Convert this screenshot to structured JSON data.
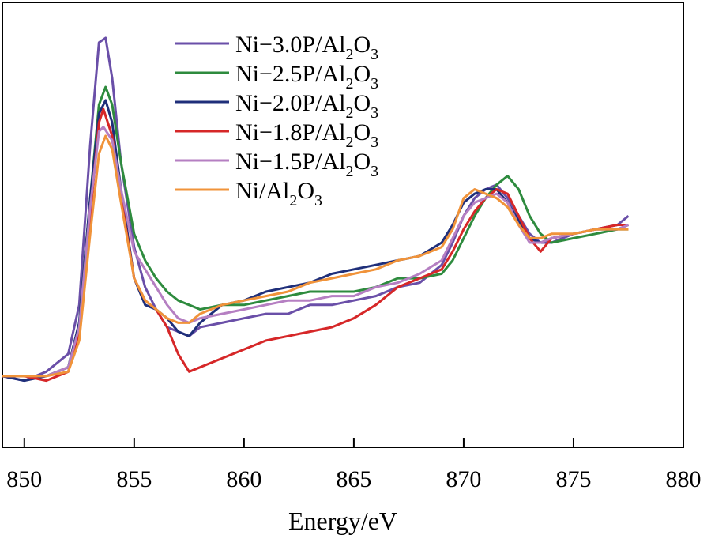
{
  "chart_data": {
    "type": "line",
    "title": "",
    "xlabel": "Energy/eV",
    "ylabel": "",
    "xlim": [
      849,
      880
    ],
    "ylim": [
      0,
      1
    ],
    "xticks": [
      850,
      855,
      860,
      865,
      870,
      875,
      880
    ],
    "xtick_labels": [
      "850",
      "855",
      "860",
      "865",
      "870",
      "875",
      "880"
    ],
    "grid": false,
    "legend_position": "top-center",
    "series": [
      {
        "name": "Ni-3.0P/Al2O3",
        "legend": {
          "prefix": "Ni−3.0P/Al",
          "sub1": "2",
          "mid": "O",
          "sub2": "3"
        },
        "color": "#6a4fa8",
        "points": [
          [
            849,
            0.16
          ],
          [
            850,
            0.15
          ],
          [
            851,
            0.17
          ],
          [
            852,
            0.21
          ],
          [
            852.5,
            0.32
          ],
          [
            853,
            0.68
          ],
          [
            853.4,
            0.91
          ],
          [
            853.7,
            0.92
          ],
          [
            854,
            0.83
          ],
          [
            854.4,
            0.64
          ],
          [
            855,
            0.45
          ],
          [
            855.5,
            0.36
          ],
          [
            856,
            0.31
          ],
          [
            856.5,
            0.27
          ],
          [
            857,
            0.26
          ],
          [
            857.5,
            0.25
          ],
          [
            858,
            0.27
          ],
          [
            859,
            0.28
          ],
          [
            860,
            0.29
          ],
          [
            861,
            0.3
          ],
          [
            862,
            0.3
          ],
          [
            863,
            0.32
          ],
          [
            864,
            0.32
          ],
          [
            865,
            0.33
          ],
          [
            866,
            0.34
          ],
          [
            867,
            0.36
          ],
          [
            868,
            0.37
          ],
          [
            869,
            0.41
          ],
          [
            869.5,
            0.46
          ],
          [
            870,
            0.52
          ],
          [
            870.5,
            0.56
          ],
          [
            871,
            0.58
          ],
          [
            871.5,
            0.59
          ],
          [
            872,
            0.56
          ],
          [
            872.5,
            0.52
          ],
          [
            873,
            0.48
          ],
          [
            873.5,
            0.46
          ],
          [
            874,
            0.46
          ],
          [
            875,
            0.48
          ],
          [
            876,
            0.49
          ],
          [
            877,
            0.5
          ],
          [
            877.5,
            0.52
          ]
        ]
      },
      {
        "name": "Ni-2.5P/Al2O3",
        "legend": {
          "prefix": "Ni−2.5P/Al",
          "sub1": "2",
          "mid": "O",
          "sub2": "3"
        },
        "color": "#2e8b3e",
        "points": [
          [
            849,
            0.16
          ],
          [
            850,
            0.16
          ],
          [
            851,
            0.16
          ],
          [
            852,
            0.18
          ],
          [
            852.5,
            0.28
          ],
          [
            853,
            0.56
          ],
          [
            853.4,
            0.77
          ],
          [
            853.7,
            0.81
          ],
          [
            854,
            0.77
          ],
          [
            854.4,
            0.64
          ],
          [
            855,
            0.48
          ],
          [
            855.5,
            0.42
          ],
          [
            856,
            0.38
          ],
          [
            856.5,
            0.35
          ],
          [
            857,
            0.33
          ],
          [
            857.5,
            0.32
          ],
          [
            858,
            0.31
          ],
          [
            859,
            0.32
          ],
          [
            860,
            0.32
          ],
          [
            861,
            0.33
          ],
          [
            862,
            0.34
          ],
          [
            863,
            0.35
          ],
          [
            864,
            0.35
          ],
          [
            865,
            0.35
          ],
          [
            866,
            0.36
          ],
          [
            867,
            0.38
          ],
          [
            868,
            0.38
          ],
          [
            869,
            0.39
          ],
          [
            869.5,
            0.42
          ],
          [
            870,
            0.47
          ],
          [
            870.5,
            0.52
          ],
          [
            871,
            0.56
          ],
          [
            871.5,
            0.59
          ],
          [
            872,
            0.61
          ],
          [
            872.5,
            0.58
          ],
          [
            873,
            0.52
          ],
          [
            873.5,
            0.48
          ],
          [
            874,
            0.46
          ],
          [
            875,
            0.47
          ],
          [
            876,
            0.48
          ],
          [
            877,
            0.49
          ],
          [
            877.5,
            0.49
          ]
        ]
      },
      {
        "name": "Ni-2.0P/Al2O3",
        "legend": {
          "prefix": "Ni−2.0P/Al",
          "sub1": "2",
          "mid": "O",
          "sub2": "3"
        },
        "color": "#1f2f7a",
        "points": [
          [
            849,
            0.16
          ],
          [
            850,
            0.15
          ],
          [
            851,
            0.16
          ],
          [
            852,
            0.18
          ],
          [
            852.5,
            0.28
          ],
          [
            853,
            0.56
          ],
          [
            853.4,
            0.75
          ],
          [
            853.7,
            0.78
          ],
          [
            854,
            0.73
          ],
          [
            854.4,
            0.58
          ],
          [
            855,
            0.38
          ],
          [
            855.5,
            0.32
          ],
          [
            856,
            0.31
          ],
          [
            856.5,
            0.29
          ],
          [
            857,
            0.26
          ],
          [
            857.5,
            0.25
          ],
          [
            858,
            0.28
          ],
          [
            859,
            0.32
          ],
          [
            860,
            0.33
          ],
          [
            861,
            0.35
          ],
          [
            862,
            0.36
          ],
          [
            863,
            0.37
          ],
          [
            864,
            0.39
          ],
          [
            865,
            0.4
          ],
          [
            866,
            0.41
          ],
          [
            867,
            0.42
          ],
          [
            868,
            0.43
          ],
          [
            869,
            0.46
          ],
          [
            869.5,
            0.5
          ],
          [
            870,
            0.55
          ],
          [
            870.5,
            0.57
          ],
          [
            871,
            0.58
          ],
          [
            871.5,
            0.58
          ],
          [
            872,
            0.55
          ],
          [
            872.5,
            0.51
          ],
          [
            873,
            0.47
          ],
          [
            873.5,
            0.46
          ],
          [
            874,
            0.47
          ],
          [
            875,
            0.48
          ],
          [
            876,
            0.49
          ],
          [
            877,
            0.49
          ],
          [
            877.5,
            0.5
          ]
        ]
      },
      {
        "name": "Ni-1.8P/Al2O3",
        "legend": {
          "prefix": "Ni−1.8P/Al",
          "sub1": "2",
          "mid": "O",
          "sub2": "3"
        },
        "color": "#d62728",
        "points": [
          [
            849,
            0.16
          ],
          [
            850,
            0.16
          ],
          [
            851,
            0.15
          ],
          [
            852,
            0.17
          ],
          [
            852.5,
            0.26
          ],
          [
            853,
            0.52
          ],
          [
            853.4,
            0.73
          ],
          [
            853.6,
            0.76
          ],
          [
            854,
            0.7
          ],
          [
            854.4,
            0.56
          ],
          [
            855,
            0.38
          ],
          [
            855.5,
            0.33
          ],
          [
            856,
            0.31
          ],
          [
            856.5,
            0.27
          ],
          [
            857,
            0.21
          ],
          [
            857.5,
            0.17
          ],
          [
            858,
            0.18
          ],
          [
            859,
            0.2
          ],
          [
            860,
            0.22
          ],
          [
            861,
            0.24
          ],
          [
            862,
            0.25
          ],
          [
            863,
            0.26
          ],
          [
            864,
            0.27
          ],
          [
            865,
            0.29
          ],
          [
            866,
            0.32
          ],
          [
            867,
            0.36
          ],
          [
            868,
            0.38
          ],
          [
            869,
            0.4
          ],
          [
            869.5,
            0.44
          ],
          [
            870,
            0.49
          ],
          [
            870.5,
            0.53
          ],
          [
            871,
            0.56
          ],
          [
            871.5,
            0.58
          ],
          [
            872,
            0.57
          ],
          [
            872.5,
            0.52
          ],
          [
            873,
            0.47
          ],
          [
            873.5,
            0.44
          ],
          [
            874,
            0.47
          ],
          [
            875,
            0.48
          ],
          [
            876,
            0.49
          ],
          [
            877,
            0.5
          ],
          [
            877.5,
            0.5
          ]
        ]
      },
      {
        "name": "Ni-1.5P/Al2O3",
        "legend": {
          "prefix": "Ni−1.5P/Al",
          "sub1": "2",
          "mid": "O",
          "sub2": "3"
        },
        "color": "#b57fc2",
        "points": [
          [
            849,
            0.16
          ],
          [
            850,
            0.16
          ],
          [
            851,
            0.16
          ],
          [
            852,
            0.18
          ],
          [
            852.5,
            0.27
          ],
          [
            853,
            0.54
          ],
          [
            853.4,
            0.71
          ],
          [
            853.6,
            0.72
          ],
          [
            854,
            0.69
          ],
          [
            854.4,
            0.58
          ],
          [
            855,
            0.44
          ],
          [
            855.5,
            0.4
          ],
          [
            856,
            0.36
          ],
          [
            856.5,
            0.32
          ],
          [
            857,
            0.29
          ],
          [
            857.5,
            0.28
          ],
          [
            858,
            0.29
          ],
          [
            859,
            0.3
          ],
          [
            860,
            0.31
          ],
          [
            861,
            0.32
          ],
          [
            862,
            0.33
          ],
          [
            863,
            0.33
          ],
          [
            864,
            0.34
          ],
          [
            865,
            0.34
          ],
          [
            866,
            0.36
          ],
          [
            867,
            0.37
          ],
          [
            868,
            0.39
          ],
          [
            869,
            0.42
          ],
          [
            869.5,
            0.47
          ],
          [
            870,
            0.52
          ],
          [
            870.5,
            0.55
          ],
          [
            871,
            0.56
          ],
          [
            871.5,
            0.57
          ],
          [
            872,
            0.55
          ],
          [
            872.5,
            0.5
          ],
          [
            873,
            0.46
          ],
          [
            873.5,
            0.46
          ],
          [
            874,
            0.47
          ],
          [
            875,
            0.48
          ],
          [
            876,
            0.49
          ],
          [
            877,
            0.49
          ],
          [
            877.5,
            0.5
          ]
        ]
      },
      {
        "name": "Ni/Al2O3",
        "legend": {
          "prefix": "Ni/Al",
          "sub1": "2",
          "mid": "O",
          "sub2": "3"
        },
        "color": "#f0933a",
        "points": [
          [
            849,
            0.16
          ],
          [
            850,
            0.16
          ],
          [
            851,
            0.16
          ],
          [
            852,
            0.17
          ],
          [
            852.5,
            0.24
          ],
          [
            853,
            0.48
          ],
          [
            853.4,
            0.66
          ],
          [
            853.7,
            0.7
          ],
          [
            854,
            0.67
          ],
          [
            854.4,
            0.55
          ],
          [
            855,
            0.38
          ],
          [
            855.5,
            0.33
          ],
          [
            856,
            0.31
          ],
          [
            856.5,
            0.29
          ],
          [
            857,
            0.28
          ],
          [
            857.5,
            0.28
          ],
          [
            858,
            0.3
          ],
          [
            859,
            0.32
          ],
          [
            860,
            0.33
          ],
          [
            861,
            0.34
          ],
          [
            862,
            0.35
          ],
          [
            863,
            0.37
          ],
          [
            864,
            0.38
          ],
          [
            865,
            0.39
          ],
          [
            866,
            0.4
          ],
          [
            867,
            0.42
          ],
          [
            868,
            0.43
          ],
          [
            869,
            0.45
          ],
          [
            869.5,
            0.49
          ],
          [
            870,
            0.56
          ],
          [
            870.5,
            0.58
          ],
          [
            871,
            0.57
          ],
          [
            871.5,
            0.56
          ],
          [
            872,
            0.54
          ],
          [
            872.5,
            0.5
          ],
          [
            873,
            0.47
          ],
          [
            873.5,
            0.47
          ],
          [
            874,
            0.48
          ],
          [
            875,
            0.48
          ],
          [
            876,
            0.49
          ],
          [
            877,
            0.49
          ],
          [
            877.5,
            0.49
          ]
        ]
      }
    ]
  }
}
